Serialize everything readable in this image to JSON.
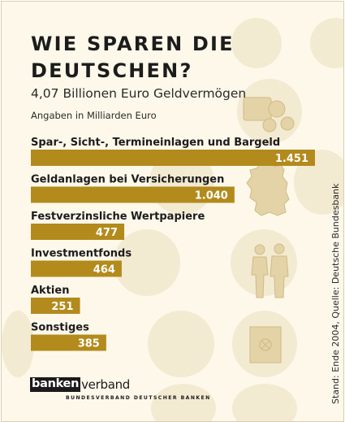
{
  "title": "WIE SPAREN DIE DEUTSCHEN?",
  "subtitle": "4,07 Billionen Euro Geldvermögen",
  "note": "Angaben in Milliarden Euro",
  "source": "Stand: Ende 2004, Quelle: Deutsche Bundesbank",
  "logo": {
    "boxed": "banken",
    "rest": "verband",
    "tagline": "BUNDESVERBAND DEUTSCHER BANKEN"
  },
  "colors": {
    "bar": "#b38a1c",
    "background": "#fdf8ea",
    "circle": "#f3ead2",
    "decoration": "#e4d3a6"
  },
  "decorations": [
    "coin-stack-icon",
    "germany-map-icon",
    "people-couple-icon",
    "safe-icon"
  ],
  "chart_data": {
    "type": "bar",
    "orientation": "horizontal",
    "categories": [
      "Spar-, Sicht-, Termineinlagen und Bargeld",
      "Geldanlagen bei Versicherungen",
      "Festverzinsliche Wertpapiere",
      "Investmentfonds",
      "Aktien",
      "Sonstiges"
    ],
    "values": [
      1451,
      1040,
      477,
      464,
      251,
      385
    ],
    "value_labels": [
      "1.451",
      "1.040",
      "477",
      "464",
      "251",
      "385"
    ],
    "unit": "Milliarden Euro",
    "xlim": [
      0,
      1451
    ],
    "grid": false,
    "legend": "none"
  }
}
